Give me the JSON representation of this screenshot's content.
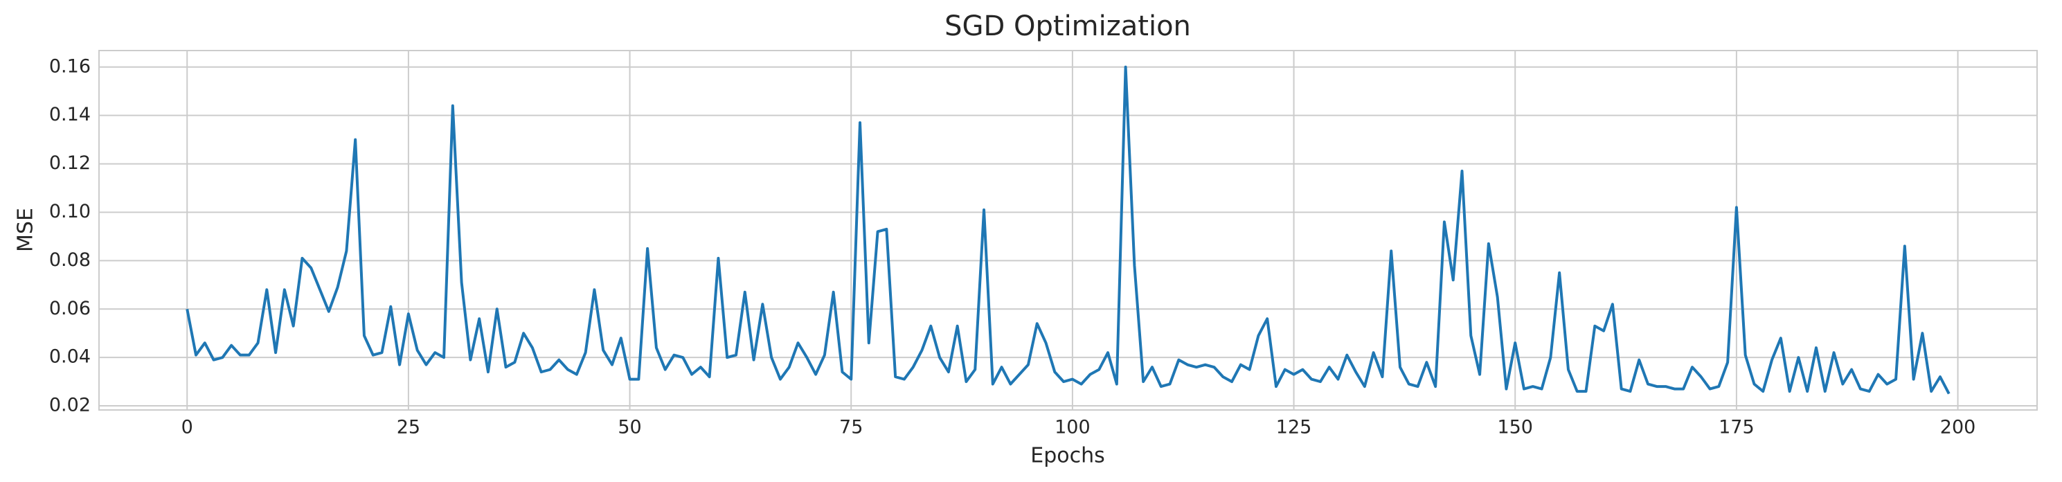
{
  "chart_data": {
    "type": "line",
    "title": "SGD Optimization",
    "xlabel": "Epochs",
    "ylabel": "MSE",
    "color": "#1f77b4",
    "grid": true,
    "x": [
      0,
      1,
      2,
      3,
      4,
      5,
      6,
      7,
      8,
      9,
      10,
      11,
      12,
      13,
      14,
      15,
      16,
      17,
      18,
      19,
      20,
      21,
      22,
      23,
      24,
      25,
      26,
      27,
      28,
      29,
      30,
      31,
      32,
      33,
      34,
      35,
      36,
      37,
      38,
      39,
      40,
      41,
      42,
      43,
      44,
      45,
      46,
      47,
      48,
      49,
      50,
      51,
      52,
      53,
      54,
      55,
      56,
      57,
      58,
      59,
      60,
      61,
      62,
      63,
      64,
      65,
      66,
      67,
      68,
      69,
      70,
      71,
      72,
      73,
      74,
      75,
      76,
      77,
      78,
      79,
      80,
      81,
      82,
      83,
      84,
      85,
      86,
      87,
      88,
      89,
      90,
      91,
      92,
      93,
      94,
      95,
      96,
      97,
      98,
      99,
      100,
      101,
      102,
      103,
      104,
      105,
      106,
      107,
      108,
      109,
      110,
      111,
      112,
      113,
      114,
      115,
      116,
      117,
      118,
      119,
      120,
      121,
      122,
      123,
      124,
      125,
      126,
      127,
      128,
      129,
      130,
      131,
      132,
      133,
      134,
      135,
      136,
      137,
      138,
      139,
      140,
      141,
      142,
      143,
      144,
      145,
      146,
      147,
      148,
      149,
      150,
      151,
      152,
      153,
      154,
      155,
      156,
      157,
      158,
      159,
      160,
      161,
      162,
      163,
      164,
      165,
      166,
      167,
      168,
      169,
      170,
      171,
      172,
      173,
      174,
      175,
      176,
      177,
      178,
      179,
      180,
      181,
      182,
      183,
      184,
      185,
      186,
      187,
      188,
      189,
      190,
      191,
      192,
      193,
      194,
      195,
      196,
      197,
      198,
      199
    ],
    "values": [
      0.06,
      0.041,
      0.046,
      0.039,
      0.04,
      0.045,
      0.041,
      0.041,
      0.046,
      0.068,
      0.042,
      0.068,
      0.053,
      0.081,
      0.077,
      0.068,
      0.059,
      0.069,
      0.084,
      0.13,
      0.049,
      0.041,
      0.042,
      0.061,
      0.037,
      0.058,
      0.043,
      0.037,
      0.042,
      0.04,
      0.144,
      0.071,
      0.039,
      0.056,
      0.034,
      0.06,
      0.036,
      0.038,
      0.05,
      0.044,
      0.034,
      0.035,
      0.039,
      0.035,
      0.033,
      0.042,
      0.068,
      0.043,
      0.037,
      0.048,
      0.031,
      0.031,
      0.085,
      0.044,
      0.035,
      0.041,
      0.04,
      0.033,
      0.036,
      0.032,
      0.081,
      0.04,
      0.041,
      0.067,
      0.039,
      0.062,
      0.04,
      0.031,
      0.036,
      0.046,
      0.04,
      0.033,
      0.041,
      0.067,
      0.034,
      0.031,
      0.137,
      0.046,
      0.092,
      0.093,
      0.032,
      0.031,
      0.036,
      0.043,
      0.053,
      0.04,
      0.034,
      0.053,
      0.03,
      0.035,
      0.101,
      0.029,
      0.036,
      0.029,
      0.033,
      0.037,
      0.054,
      0.046,
      0.034,
      0.03,
      0.031,
      0.029,
      0.033,
      0.035,
      0.042,
      0.029,
      0.16,
      0.078,
      0.03,
      0.036,
      0.028,
      0.029,
      0.039,
      0.037,
      0.036,
      0.037,
      0.036,
      0.032,
      0.03,
      0.037,
      0.035,
      0.049,
      0.056,
      0.028,
      0.035,
      0.033,
      0.035,
      0.031,
      0.03,
      0.036,
      0.031,
      0.041,
      0.034,
      0.028,
      0.042,
      0.032,
      0.084,
      0.036,
      0.029,
      0.028,
      0.038,
      0.028,
      0.096,
      0.072,
      0.117,
      0.049,
      0.033,
      0.087,
      0.065,
      0.027,
      0.046,
      0.027,
      0.028,
      0.027,
      0.04,
      0.075,
      0.035,
      0.026,
      0.026,
      0.053,
      0.051,
      0.062,
      0.027,
      0.026,
      0.039,
      0.029,
      0.028,
      0.028,
      0.027,
      0.027,
      0.036,
      0.032,
      0.027,
      0.028,
      0.038,
      0.102,
      0.041,
      0.029,
      0.026,
      0.039,
      0.048,
      0.026,
      0.04,
      0.026,
      0.044,
      0.026,
      0.042,
      0.029,
      0.035,
      0.027,
      0.026,
      0.033,
      0.029,
      0.031,
      0.086,
      0.031,
      0.05,
      0.026,
      0.032,
      0.025
    ],
    "xlim": [
      -9.95,
      208.95
    ],
    "xticks": [
      0,
      25,
      50,
      75,
      100,
      125,
      150,
      175,
      200
    ],
    "ylim": [
      0.0183,
      0.1668
    ],
    "yticks": [
      0.02,
      0.04,
      0.06,
      0.08,
      {
        "value": 0.1,
        "label": "0.10"
      },
      0.12,
      0.14,
      0.16
    ]
  }
}
